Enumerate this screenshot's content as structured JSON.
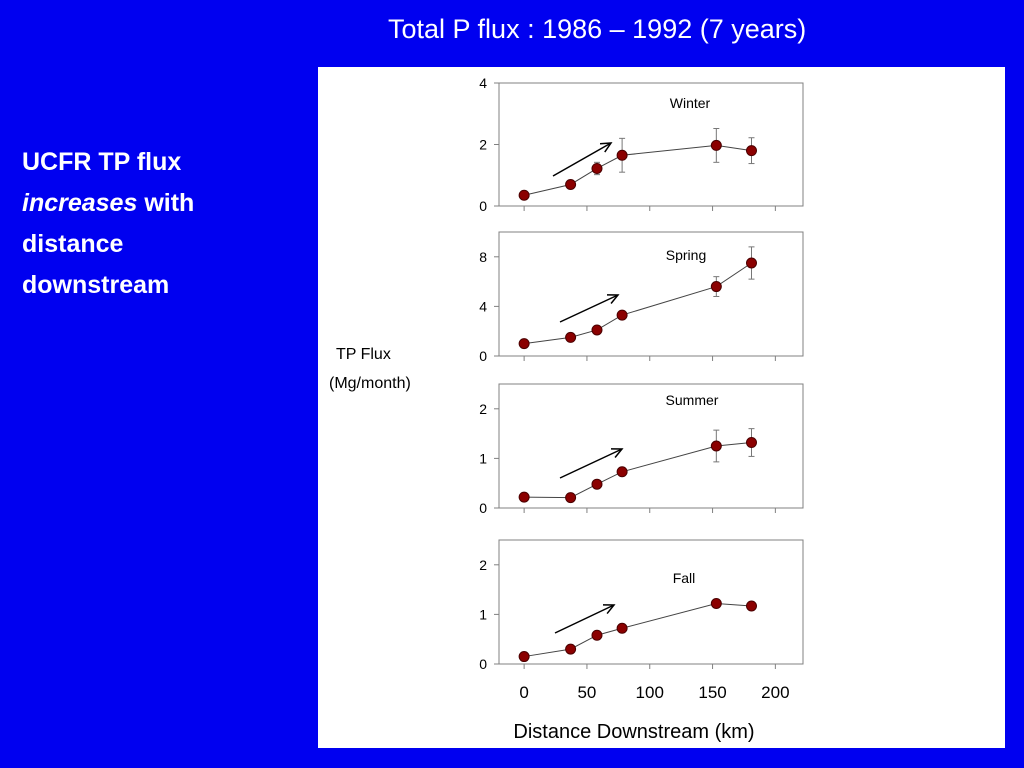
{
  "slide": {
    "title": "Total P flux : 1986 – 1992 (7 years)",
    "side_text": {
      "line1": "UCFR TP flux",
      "line2_em": "increases",
      "line2_rest": " with",
      "line3": "distance",
      "line4": "downstream"
    }
  },
  "colors": {
    "background": "#0000f0",
    "panel": "#ffffff",
    "marker": "#8b0000",
    "line": "#444444"
  },
  "chart_data": {
    "type": "line",
    "xlabel": "Distance Downstream (km)",
    "ylabel": "TP Flux",
    "ylabel_unit": "(Mg/month)",
    "x": [
      0,
      37,
      58,
      78,
      153,
      181
    ],
    "xlim": [
      -20,
      222
    ],
    "xticks": [
      0,
      50,
      100,
      150,
      200
    ],
    "grid": false,
    "panels": [
      {
        "name": "Winter",
        "ylim": [
          0,
          4
        ],
        "yticks": [
          0,
          2,
          4
        ],
        "values": [
          0.35,
          0.7,
          1.22,
          1.65,
          1.97,
          1.8
        ],
        "errors": [
          0,
          0,
          0.2,
          0.55,
          0.55,
          0.42
        ]
      },
      {
        "name": "Spring",
        "ylim": [
          0,
          10
        ],
        "yticks": [
          0,
          4,
          8
        ],
        "values": [
          1.0,
          1.5,
          2.1,
          3.3,
          5.6,
          7.5
        ],
        "errors": [
          0,
          0,
          0,
          0,
          0.8,
          1.3
        ]
      },
      {
        "name": "Summer",
        "ylim": [
          0,
          2.5
        ],
        "yticks": [
          0,
          1,
          2
        ],
        "values": [
          0.22,
          0.21,
          0.48,
          0.73,
          1.25,
          1.32
        ],
        "errors": [
          0,
          0,
          0,
          0,
          0.32,
          0.28
        ]
      },
      {
        "name": "Fall",
        "ylim": [
          0,
          2.5
        ],
        "yticks": [
          0,
          1,
          2
        ],
        "values": [
          0.15,
          0.3,
          0.58,
          0.72,
          1.22,
          1.17
        ],
        "errors": [
          0,
          0,
          0,
          0,
          0,
          0
        ]
      }
    ]
  }
}
